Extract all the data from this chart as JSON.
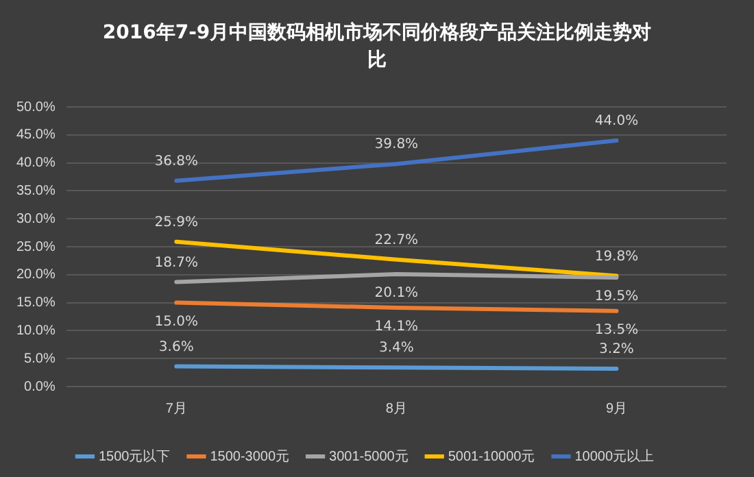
{
  "chart_data": {
    "type": "line",
    "title": "2016年7-9月中国数码相机市场不同价格段产品关注比例走势对比",
    "categories": [
      "7月",
      "8月",
      "9月"
    ],
    "series": [
      {
        "name": "1500元以下",
        "color": "#5b9bd5",
        "values": [
          3.6,
          3.4,
          3.2
        ],
        "value_labels": [
          "3.6%",
          "3.4%",
          "3.2%"
        ]
      },
      {
        "name": "1500-3000元",
        "color": "#ed7d31",
        "values": [
          15.0,
          14.1,
          13.5
        ],
        "value_labels": [
          "15.0%",
          "14.1%",
          "13.5%"
        ]
      },
      {
        "name": "3001-5000元",
        "color": "#a5a5a5",
        "values": [
          18.7,
          20.1,
          19.5
        ],
        "value_labels": [
          "18.7%",
          "20.1%",
          "19.5%"
        ]
      },
      {
        "name": "5001-10000元",
        "color": "#ffc000",
        "values": [
          25.9,
          22.7,
          19.8
        ],
        "value_labels": [
          "25.9%",
          "22.7%",
          "19.8%"
        ]
      },
      {
        "name": "10000元以上",
        "color": "#4472c4",
        "values": [
          36.8,
          39.8,
          44.0
        ],
        "value_labels": [
          "36.8%",
          "39.8%",
          "44.0%"
        ]
      }
    ],
    "ylim": [
      0,
      50
    ],
    "yticks": [
      {
        "value": 0,
        "label": "0.0%"
      },
      {
        "value": 5,
        "label": "5.0%"
      },
      {
        "value": 10,
        "label": "10.0%"
      },
      {
        "value": 15,
        "label": "15.0%"
      },
      {
        "value": 20,
        "label": "20.0%"
      },
      {
        "value": 25,
        "label": "25.0%"
      },
      {
        "value": 30,
        "label": "30.0%"
      },
      {
        "value": 35,
        "label": "35.0%"
      },
      {
        "value": 40,
        "label": "40.0%"
      },
      {
        "value": 45,
        "label": "45.0%"
      },
      {
        "value": 50,
        "label": "50.0%"
      }
    ],
    "grid": "y",
    "legend": "bottom",
    "marker": "none",
    "line_style": "solid"
  }
}
